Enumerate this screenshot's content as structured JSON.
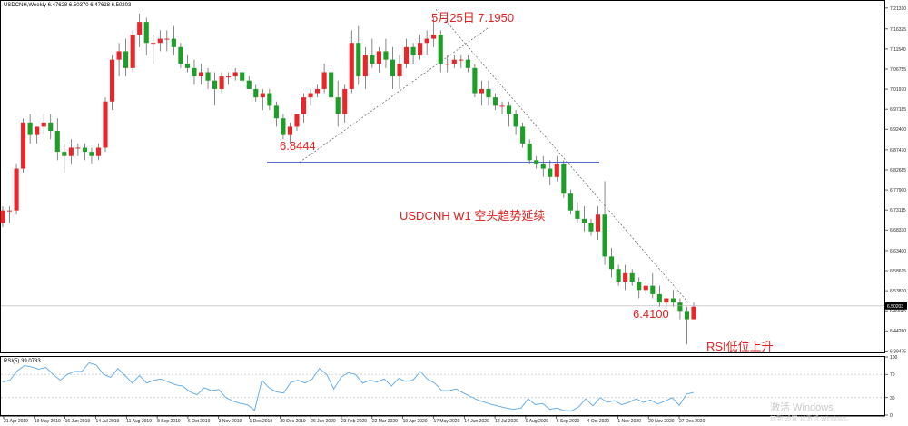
{
  "window": {
    "price_title": "USDCNH,Weekly  6.47628 6.50370 6.47628 6.50203",
    "rsi_title": "RSI(5) 39.0783"
  },
  "price_axis": {
    "ticks": [
      "7.21310",
      "7.16325",
      "7.11540",
      "7.06755",
      "7.01970",
      "6.97185",
      "6.92400",
      "6.87470",
      "6.82685",
      "6.77900",
      "6.73115",
      "6.68330",
      "6.63400",
      "6.58615",
      "6.53830",
      "6.49045",
      "6.44260",
      "6.39475"
    ],
    "current_price": "6.50203",
    "range": [
      6.391,
      7.228
    ]
  },
  "rsi_axis": {
    "ticks": [
      "100",
      "70",
      "30",
      "0"
    ],
    "range": [
      0,
      100
    ]
  },
  "time_axis": {
    "labels": [
      "21 Apr 2019",
      "19 May 2019",
      "16 Jun 2019",
      "14 Jul 2019",
      "11 Aug 2019",
      "8 Sep 2019",
      "6 Oct 2019",
      "3 Nov 2019",
      "1 Dec 2019",
      "29 Dec 2019",
      "26 Jan 2020",
      "23 Feb 2020",
      "22 Mar 2020",
      "19 Apr 2020",
      "17 May 2020",
      "14 Jun 2020",
      "12 Jul 2020",
      "9 Aug 2020",
      "6 Sep 2020",
      "4 Oct 2020",
      "1 Nov 2020",
      "29 Nov 2020",
      "27 Dec 2020"
    ]
  },
  "annotations": {
    "high": "5月25日  7.1950",
    "support": "6.8444",
    "low": "6.4100",
    "headline": "USDCNH  W1  空头趋势延续",
    "rsi_note": "RSI低位上升"
  },
  "watermark": {
    "line1": "激活 Windows",
    "line2": "转到\"设置\"以激活 Windows。"
  },
  "colors": {
    "bull": "#e8262b",
    "bear": "#1e9e28",
    "support_line": "#2233cc",
    "rsi_line": "#5aa7e6",
    "annotation": "#e02020"
  },
  "chart_data": [
    {
      "type": "candlestick",
      "title": "USDCNH,Weekly",
      "series": [
        {
          "name": "USDCNH",
          "ohlc": [
            [
              6.7,
              6.74,
              6.69,
              6.73
            ],
            [
              6.73,
              6.74,
              6.7,
              6.73
            ],
            [
              6.73,
              6.84,
              6.72,
              6.83
            ],
            [
              6.83,
              6.95,
              6.82,
              6.94
            ],
            [
              6.94,
              6.96,
              6.89,
              6.91
            ],
            [
              6.91,
              6.93,
              6.89,
              6.93
            ],
            [
              6.93,
              6.96,
              6.91,
              6.94
            ],
            [
              6.94,
              6.96,
              6.9,
              6.92
            ],
            [
              6.92,
              6.95,
              6.85,
              6.87
            ],
            [
              6.87,
              6.89,
              6.82,
              6.86
            ],
            [
              6.86,
              6.9,
              6.84,
              6.88
            ],
            [
              6.88,
              6.89,
              6.86,
              6.88
            ],
            [
              6.88,
              6.89,
              6.85,
              6.87
            ],
            [
              6.87,
              6.88,
              6.84,
              6.86
            ],
            [
              6.86,
              6.89,
              6.85,
              6.88
            ],
            [
              6.88,
              7.0,
              6.87,
              6.99
            ],
            [
              6.99,
              7.1,
              6.97,
              7.09
            ],
            [
              7.09,
              7.13,
              7.05,
              7.11
            ],
            [
              7.11,
              7.14,
              7.05,
              7.07
            ],
            [
              7.07,
              7.16,
              7.06,
              7.15
            ],
            [
              7.15,
              7.2,
              7.12,
              7.18
            ],
            [
              7.18,
              7.19,
              7.1,
              7.13
            ],
            [
              7.13,
              7.15,
              7.08,
              7.13
            ],
            [
              7.13,
              7.16,
              7.11,
              7.14
            ],
            [
              7.14,
              7.16,
              7.11,
              7.14
            ],
            [
              7.14,
              7.17,
              7.1,
              7.12
            ],
            [
              7.12,
              7.13,
              7.07,
              7.08
            ],
            [
              7.08,
              7.1,
              7.06,
              7.07
            ],
            [
              7.07,
              7.09,
              7.03,
              7.05
            ],
            [
              7.05,
              7.08,
              7.03,
              7.06
            ],
            [
              7.06,
              7.07,
              7.02,
              7.04
            ],
            [
              7.04,
              7.06,
              6.98,
              7.02
            ],
            [
              7.02,
              7.06,
              7.01,
              7.05
            ],
            [
              7.05,
              7.06,
              7.03,
              7.05
            ],
            [
              7.05,
              7.07,
              7.04,
              7.06
            ],
            [
              7.06,
              7.06,
              7.03,
              7.04
            ],
            [
              7.04,
              7.05,
              7.02,
              7.02
            ],
            [
              7.02,
              7.03,
              6.99,
              7.0
            ],
            [
              7.0,
              7.02,
              6.97,
              7.01
            ],
            [
              7.01,
              7.02,
              6.97,
              6.98
            ],
            [
              6.98,
              6.99,
              6.93,
              6.95
            ],
            [
              6.95,
              6.96,
              6.9,
              6.91
            ],
            [
              6.91,
              6.94,
              6.89,
              6.93
            ],
            [
              6.93,
              6.96,
              6.92,
              6.96
            ],
            [
              6.96,
              7.01,
              6.94,
              7.0
            ],
            [
              7.0,
              7.02,
              6.98,
              7.01
            ],
            [
              7.01,
              7.03,
              7.0,
              7.02
            ],
            [
              7.02,
              7.08,
              7.01,
              7.06
            ],
            [
              7.06,
              7.07,
              6.99,
              7.0
            ],
            [
              7.0,
              7.04,
              6.93,
              6.96
            ],
            [
              6.96,
              7.03,
              6.94,
              7.02
            ],
            [
              7.02,
              7.16,
              7.01,
              7.13
            ],
            [
              7.13,
              7.17,
              7.03,
              7.05
            ],
            [
              7.05,
              7.12,
              7.02,
              7.1
            ],
            [
              7.1,
              7.14,
              7.07,
              7.08
            ],
            [
              7.08,
              7.12,
              7.06,
              7.11
            ],
            [
              7.11,
              7.14,
              7.07,
              7.09
            ],
            [
              7.09,
              7.12,
              7.02,
              7.05
            ],
            [
              7.05,
              7.1,
              7.02,
              7.08
            ],
            [
              7.08,
              7.14,
              7.07,
              7.12
            ],
            [
              7.12,
              7.13,
              7.08,
              7.1
            ],
            [
              7.1,
              7.15,
              7.09,
              7.13
            ],
            [
              7.13,
              7.16,
              7.1,
              7.14
            ],
            [
              7.14,
              7.19,
              7.12,
              7.15
            ],
            [
              7.15,
              7.16,
              7.06,
              7.08
            ],
            [
              7.08,
              7.1,
              7.06,
              7.08
            ],
            [
              7.08,
              7.1,
              7.07,
              7.09
            ],
            [
              7.09,
              7.1,
              7.07,
              7.09
            ],
            [
              7.09,
              7.1,
              7.06,
              7.07
            ],
            [
              7.07,
              7.08,
              7.0,
              7.01
            ],
            [
              7.01,
              7.04,
              6.98,
              7.02
            ],
            [
              7.02,
              7.04,
              6.98,
              7.0
            ],
            [
              7.0,
              7.01,
              6.97,
              6.98
            ],
            [
              6.98,
              6.99,
              6.96,
              6.98
            ],
            [
              6.98,
              6.99,
              6.93,
              6.96
            ],
            [
              6.96,
              6.97,
              6.91,
              6.93
            ],
            [
              6.93,
              6.94,
              6.88,
              6.89
            ],
            [
              6.89,
              6.9,
              6.84,
              6.85
            ],
            [
              6.85,
              6.86,
              6.83,
              6.84
            ],
            [
              6.84,
              6.86,
              6.81,
              6.83
            ],
            [
              6.83,
              6.85,
              6.79,
              6.81
            ],
            [
              6.81,
              6.86,
              6.8,
              6.84
            ],
            [
              6.84,
              6.85,
              6.76,
              6.77
            ],
            [
              6.77,
              6.78,
              6.72,
              6.73
            ],
            [
              6.73,
              6.75,
              6.7,
              6.71
            ],
            [
              6.71,
              6.74,
              6.68,
              6.7
            ],
            [
              6.7,
              6.71,
              6.67,
              6.68
            ],
            [
              6.68,
              6.74,
              6.66,
              6.72
            ],
            [
              6.72,
              6.8,
              6.6,
              6.62
            ],
            [
              6.62,
              6.64,
              6.57,
              6.59
            ],
            [
              6.59,
              6.6,
              6.55,
              6.56
            ],
            [
              6.56,
              6.6,
              6.54,
              6.58
            ],
            [
              6.58,
              6.59,
              6.55,
              6.56
            ],
            [
              6.56,
              6.57,
              6.52,
              6.54
            ],
            [
              6.54,
              6.56,
              6.53,
              6.55
            ],
            [
              6.55,
              6.58,
              6.52,
              6.53
            ],
            [
              6.53,
              6.55,
              6.5,
              6.51
            ],
            [
              6.51,
              6.52,
              6.5,
              6.52
            ],
            [
              6.52,
              6.54,
              6.5,
              6.51
            ],
            [
              6.51,
              6.52,
              6.47,
              6.49
            ],
            [
              6.49,
              6.5,
              6.41,
              6.47
            ],
            [
              6.47,
              6.51,
              6.47,
              6.5
            ]
          ]
        }
      ],
      "support_level": 6.8444,
      "high_point": {
        "date": "5月25日",
        "value": 7.195
      },
      "low_point": 6.41,
      "ylim": [
        6.391,
        7.228
      ]
    },
    {
      "type": "line",
      "title": "RSI(5) 39.0783",
      "series": [
        {
          "name": "RSI(5)",
          "values": [
            57,
            60,
            76,
            85,
            83,
            79,
            82,
            70,
            60,
            70,
            75,
            75,
            90,
            86,
            70,
            65,
            80,
            68,
            55,
            68,
            55,
            60,
            62,
            57,
            52,
            50,
            40,
            35,
            47,
            42,
            44,
            30,
            24,
            20,
            18,
            8,
            60,
            47,
            40,
            38,
            56,
            60,
            55,
            62,
            80,
            70,
            45,
            65,
            73,
            70,
            55,
            60,
            57,
            62,
            50,
            63,
            58,
            60,
            75,
            62,
            55,
            42,
            42,
            45,
            38,
            32,
            26,
            22,
            18,
            15,
            12,
            10,
            12,
            28,
            18,
            20,
            10,
            12,
            8,
            7,
            14,
            28,
            16,
            30,
            22,
            25,
            18,
            22,
            28,
            22,
            26,
            19,
            24,
            30,
            17,
            36,
            39
          ]
        }
      ],
      "levels": [
        70,
        30
      ],
      "ylim": [
        0,
        100
      ]
    }
  ]
}
